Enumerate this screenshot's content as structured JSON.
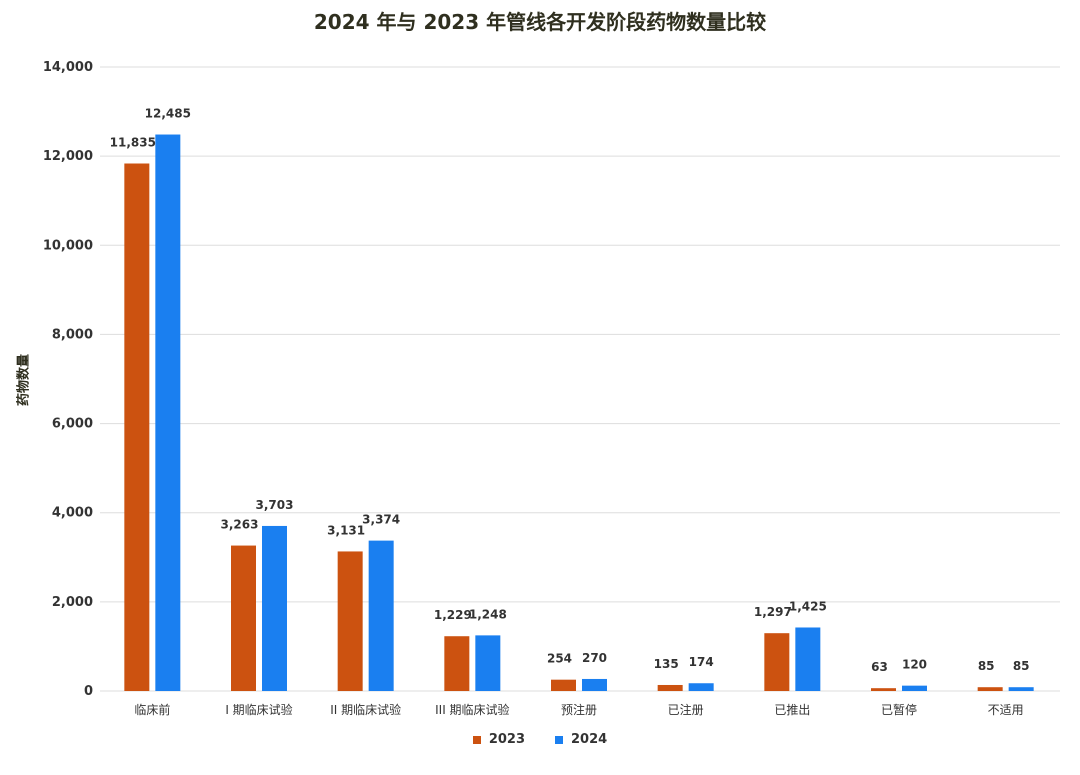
{
  "colors": {
    "series_2023": "#cc5210",
    "series_2024": "#1a7ff0",
    "grid": "#dddddd",
    "text": "#333333"
  },
  "chart_data": {
    "type": "bar",
    "title": "2024 年与 2023 年管线各开发阶段药物数量比较",
    "xlabel": "",
    "ylabel": "药物数量",
    "ylim": [
      0,
      14000
    ],
    "yticks": [
      "0",
      "2,000",
      "4,000",
      "6,000",
      "8,000",
      "10,000",
      "12,000",
      "14,000"
    ],
    "ytick_values": [
      0,
      2000,
      4000,
      6000,
      8000,
      10000,
      12000,
      14000
    ],
    "grid": true,
    "legend_position": "bottom",
    "categories": [
      "临床前",
      "I 期临床试验",
      "II 期临床试验",
      "III 期临床试验",
      "预注册",
      "已注册",
      "已推出",
      "已暂停",
      "不适用"
    ],
    "series": [
      {
        "name": "2023",
        "values": [
          11835,
          3263,
          3131,
          1229,
          254,
          135,
          1297,
          63,
          85
        ],
        "labels": [
          "11,835",
          "3,263",
          "3,131",
          "1,229",
          "254",
          "135",
          "1,297",
          "63",
          "85"
        ]
      },
      {
        "name": "2024",
        "values": [
          12485,
          3703,
          3374,
          1248,
          270,
          174,
          1425,
          120,
          85
        ],
        "labels": [
          "12,485",
          "3,703",
          "3,374",
          "1,248",
          "270",
          "174",
          "1,425",
          "120",
          "85"
        ]
      }
    ]
  }
}
